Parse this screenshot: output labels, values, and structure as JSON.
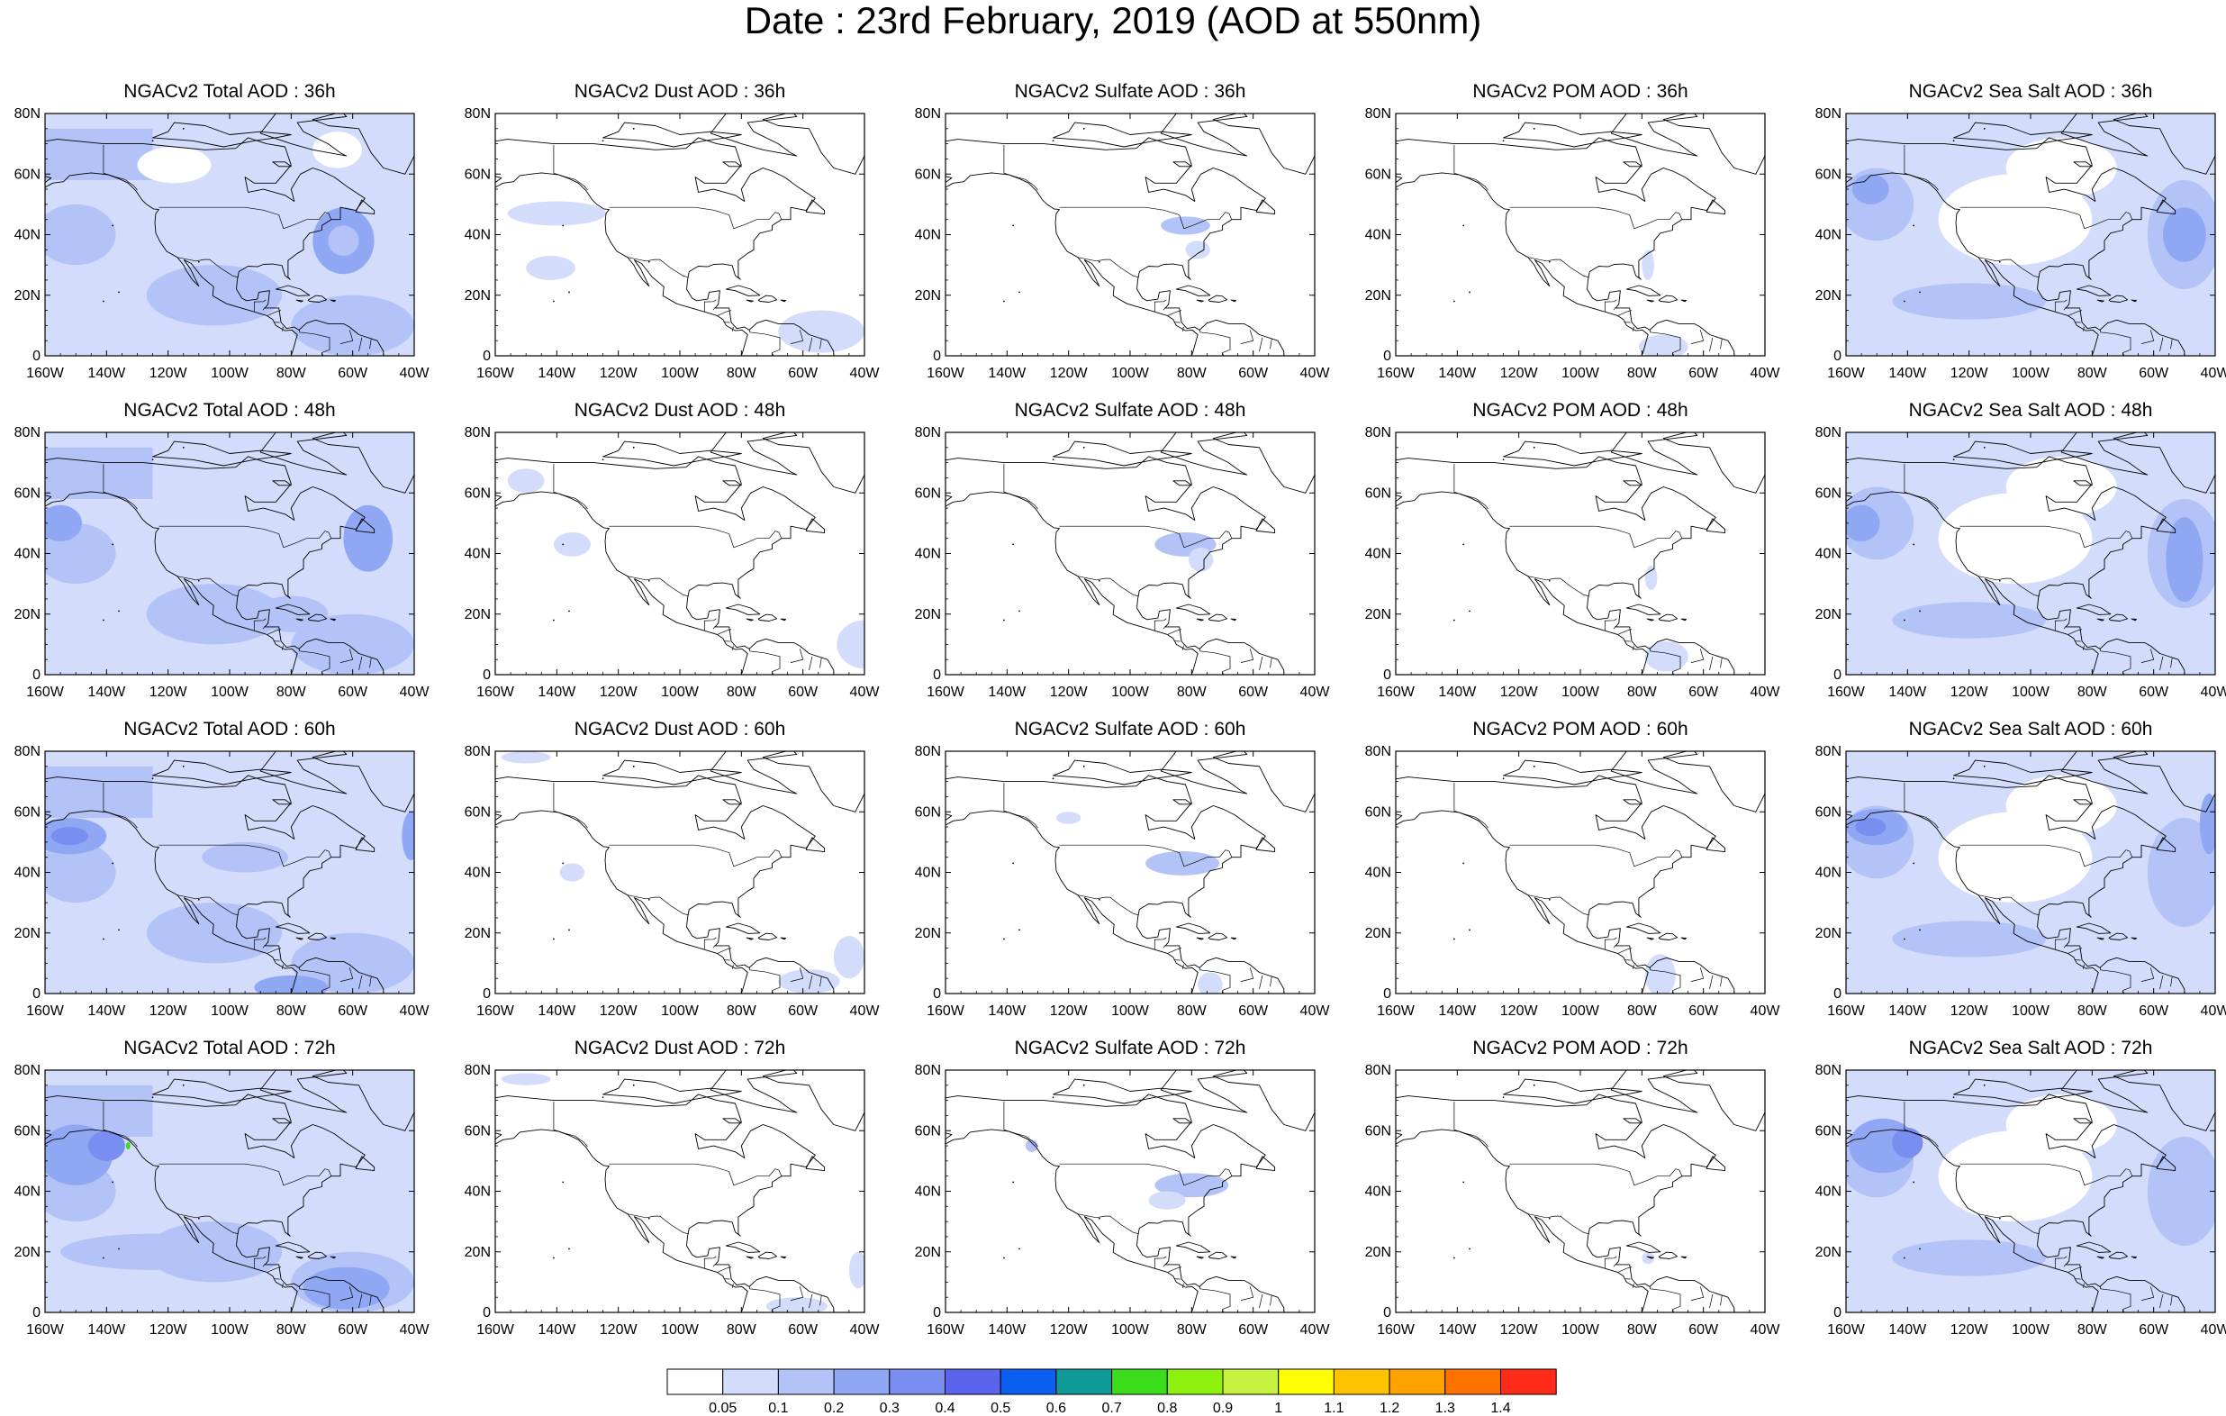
{
  "title": "Date : 23rd February, 2019 (AOD at 550nm)",
  "axes": {
    "lat_ticks": [
      "80N",
      "60N",
      "40N",
      "20N",
      "0"
    ],
    "lon_ticks": [
      "160W",
      "140W",
      "120W",
      "100W",
      "80W",
      "60W",
      "40W"
    ],
    "lat_range": [
      0,
      80
    ],
    "lon_range": [
      -160,
      -40
    ]
  },
  "colors": {
    "border": "#000000",
    "coastline": "#000000",
    "background": "#ffffff"
  },
  "rows": [
    {
      "hour": "36h",
      "panels": [
        {
          "variable": "total",
          "title": "NGACv2 Total AOD : 36h"
        },
        {
          "variable": "dust",
          "title": "NGACv2 Dust AOD : 36h"
        },
        {
          "variable": "sulfate",
          "title": "NGACv2 Sulfate AOD : 36h"
        },
        {
          "variable": "pom",
          "title": "NGACv2 POM AOD : 36h"
        },
        {
          "variable": "seasalt",
          "title": "NGACv2 Sea Salt AOD : 36h"
        }
      ]
    },
    {
      "hour": "48h",
      "panels": [
        {
          "variable": "total",
          "title": "NGACv2 Total AOD : 48h"
        },
        {
          "variable": "dust",
          "title": "NGACv2 Dust AOD : 48h"
        },
        {
          "variable": "sulfate",
          "title": "NGACv2 Sulfate AOD : 48h"
        },
        {
          "variable": "pom",
          "title": "NGACv2 POM AOD : 48h"
        },
        {
          "variable": "seasalt",
          "title": "NGACv2 Sea Salt AOD : 48h"
        }
      ]
    },
    {
      "hour": "60h",
      "panels": [
        {
          "variable": "total",
          "title": "NGACv2 Total AOD : 60h"
        },
        {
          "variable": "dust",
          "title": "NGACv2 Dust AOD : 60h"
        },
        {
          "variable": "sulfate",
          "title": "NGACv2 Sulfate AOD : 60h"
        },
        {
          "variable": "pom",
          "title": "NGACv2 POM AOD : 60h"
        },
        {
          "variable": "seasalt",
          "title": "NGACv2 Sea Salt AOD : 60h"
        }
      ]
    },
    {
      "hour": "72h",
      "panels": [
        {
          "variable": "total",
          "title": "NGACv2 Total AOD : 72h"
        },
        {
          "variable": "dust",
          "title": "NGACv2 Dust AOD : 72h"
        },
        {
          "variable": "sulfate",
          "title": "NGACv2 Sulfate AOD : 72h"
        },
        {
          "variable": "pom",
          "title": "NGACv2 POM AOD : 72h"
        },
        {
          "variable": "seasalt",
          "title": "NGACv2 Sea Salt  AOD : 72h"
        }
      ]
    }
  ],
  "colorbar": {
    "labels": [
      "0.05",
      "0.1",
      "0.2",
      "0.3",
      "0.4",
      "0.5",
      "0.6",
      "0.7",
      "0.8",
      "0.9",
      "1",
      "1.1",
      "1.2",
      "1.3",
      "1.4"
    ],
    "colors": [
      "#ffffff",
      "#d3dcfb",
      "#b3c3f7",
      "#90a8f3",
      "#7a8df0",
      "#5a64ec",
      "#0a5fee",
      "#109a9a",
      "#3bdc1b",
      "#8ef00d",
      "#c4f23e",
      "#ffff00",
      "#ffc300",
      "#ffa200",
      "#ff7200",
      "#ff2a17"
    ]
  }
}
